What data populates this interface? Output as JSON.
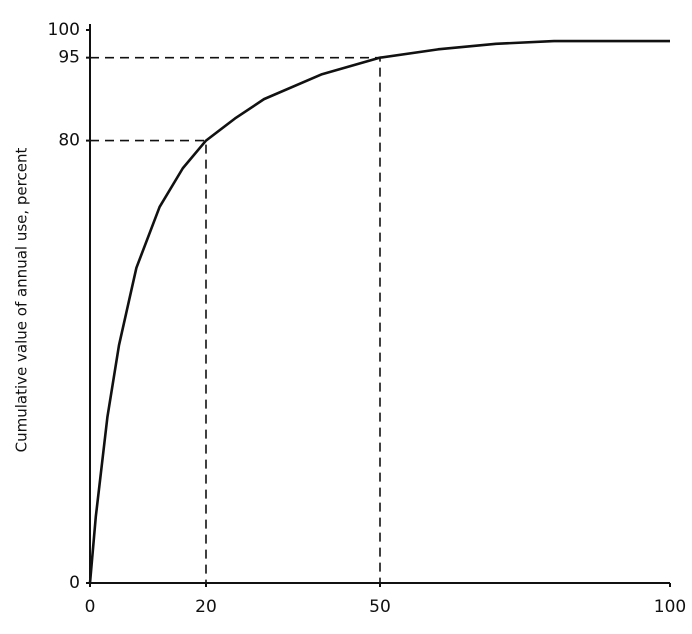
{
  "chart_data": {
    "type": "line",
    "y_label": "Cumulative value of annual use, percent",
    "x": [
      0,
      1,
      3,
      5,
      8,
      12,
      16,
      20,
      25,
      30,
      40,
      50,
      60,
      70,
      80,
      90,
      100
    ],
    "values": [
      0,
      12,
      30,
      43,
      57,
      68,
      75,
      80,
      84,
      87.5,
      92,
      95,
      96.5,
      97.5,
      98,
      98,
      98
    ],
    "color": "#111111",
    "xlim": [
      0,
      100
    ],
    "xticks": [
      0,
      20,
      50,
      100
    ],
    "ylim": [
      0,
      100
    ],
    "yticks": [
      0,
      80,
      95,
      100
    ],
    "reference_points": [
      {
        "x": 20,
        "y": 80
      },
      {
        "x": 50,
        "y": 95
      }
    ],
    "grid": false
  }
}
